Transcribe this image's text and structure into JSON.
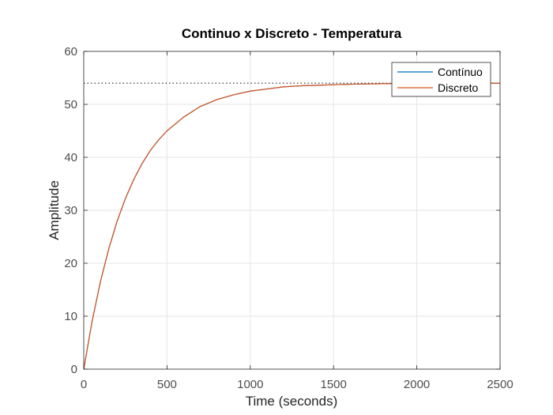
{
  "chart_data": {
    "type": "line",
    "title": "Continuo x Discreto - Temperatura",
    "xlabel": "Time (seconds)",
    "ylabel": "Amplitude",
    "xlim": [
      0,
      2500
    ],
    "ylim": [
      0,
      60
    ],
    "xticks": [
      0,
      500,
      1000,
      1500,
      2000,
      2500
    ],
    "yticks": [
      0,
      10,
      20,
      30,
      40,
      50,
      60
    ],
    "grid": true,
    "legend_position": "top-right",
    "steady_state_value": 54,
    "series": [
      {
        "name": "Contínuo",
        "color": "#0072BD",
        "x": [
          0,
          50,
          100,
          150,
          200,
          250,
          300,
          350,
          400,
          450,
          500,
          600,
          700,
          800,
          900,
          1000,
          1100,
          1200,
          1300,
          1400,
          1500,
          1600,
          1700,
          1800,
          1900,
          2000,
          2100,
          2200,
          2300,
          2400,
          2500
        ],
        "y": [
          0,
          9.0,
          16.5,
          22.7,
          27.9,
          32.2,
          35.8,
          38.8,
          41.3,
          43.3,
          45.0,
          47.6,
          49.6,
          50.9,
          51.8,
          52.5,
          52.9,
          53.3,
          53.5,
          53.6,
          53.7,
          53.8,
          53.85,
          53.9,
          53.93,
          53.95,
          53.97,
          53.98,
          53.98,
          53.99,
          53.99
        ]
      },
      {
        "name": "Discreto",
        "color": "#D95319",
        "x": [
          0,
          50,
          100,
          150,
          200,
          250,
          300,
          350,
          400,
          450,
          500,
          600,
          700,
          800,
          900,
          1000,
          1100,
          1200,
          1300,
          1400,
          1500,
          1600,
          1700,
          1800,
          1900,
          2000,
          2100,
          2200,
          2300,
          2400,
          2500
        ],
        "y": [
          0,
          9.0,
          16.5,
          22.7,
          27.9,
          32.2,
          35.8,
          38.8,
          41.3,
          43.3,
          45.0,
          47.6,
          49.6,
          50.9,
          51.8,
          52.5,
          52.9,
          53.3,
          53.5,
          53.6,
          53.7,
          53.8,
          53.85,
          53.9,
          53.93,
          53.95,
          53.97,
          53.98,
          53.98,
          53.99,
          53.99
        ]
      }
    ]
  }
}
